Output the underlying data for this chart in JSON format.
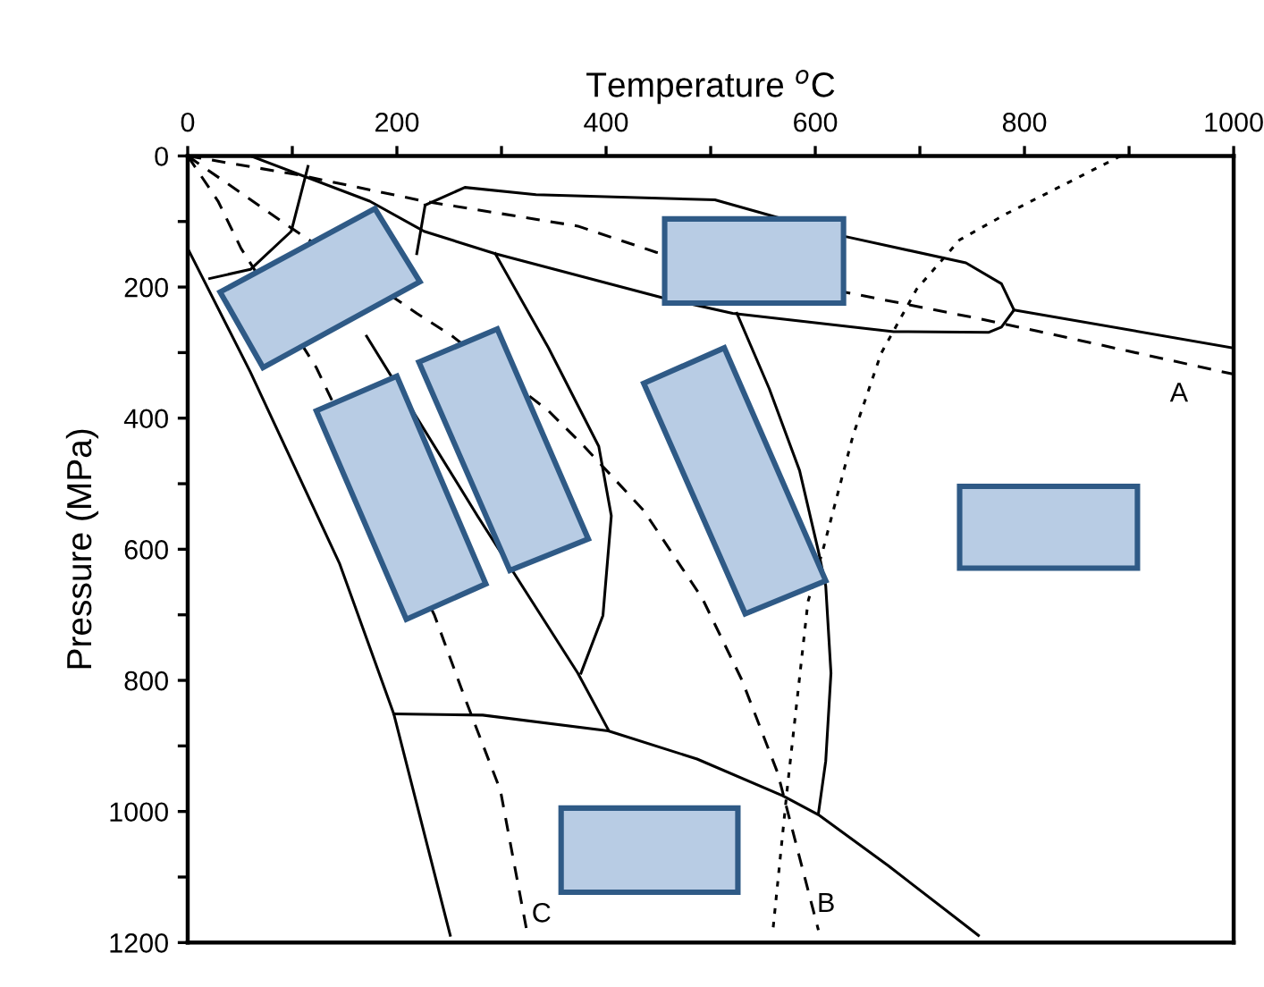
{
  "chart_data": {
    "type": "line",
    "xlabel": "Temperature $^{o}$C",
    "ylabel": "Pressure (MPa)",
    "xlim": [
      0,
      1000
    ],
    "ylim": [
      1200,
      0
    ],
    "xticks": [
      0,
      {
        "value": 100,
        "label": null
      },
      200,
      {
        "value": 300,
        "label": null
      },
      400,
      {
        "value": 500,
        "label": null
      },
      600,
      {
        "value": 700,
        "label": null
      },
      800,
      {
        "value": 900,
        "label": null
      },
      1000
    ],
    "yticks": [
      0,
      {
        "value": 100,
        "label": null
      },
      200,
      {
        "value": 300,
        "label": null
      },
      400,
      {
        "value": 500,
        "label": null
      },
      600,
      {
        "value": 700,
        "label": null
      },
      800,
      {
        "value": 900,
        "label": null
      },
      1000,
      {
        "value": 1100,
        "label": null
      },
      1200
    ],
    "grid": false,
    "legend": false,
    "marker": "none",
    "series": [
      {
        "color": "#000000",
        "line_style": "solid",
        "x": [
          60,
          174,
          226,
          294,
          453,
          521,
          675,
          766,
          778,
          790,
          1000
        ],
        "values": [
          0,
          69,
          115,
          149,
          216,
          240,
          268,
          269,
          261,
          235,
          293
        ]
      },
      {
        "color": "#000000",
        "line_style": "solid",
        "x": [
          227,
          265,
          333,
          504,
          629,
          744,
          778,
          790
        ],
        "values": [
          75,
          48,
          59,
          67,
          123,
          163,
          195,
          235
        ]
      },
      {
        "color": "#000000",
        "line_style": "solid",
        "x": [
          115,
          99,
          60,
          21
        ],
        "values": [
          16,
          115,
          173,
          187
        ]
      },
      {
        "color": "#000000",
        "line_style": "solid",
        "x": [
          227,
          219
        ],
        "values": [
          75,
          149
        ]
      },
      {
        "color": "#000000",
        "line_style": "solid",
        "x": [
          0,
          60,
          145,
          197,
          251
        ],
        "values": [
          141,
          330,
          621,
          851,
          1189
        ]
      },
      {
        "color": "#000000",
        "line_style": "solid",
        "x": [
          171,
          277,
          373,
          402
        ],
        "values": [
          275,
          549,
          789,
          875
        ]
      },
      {
        "color": "#000000",
        "line_style": "solid",
        "x": [
          294,
          345,
          393,
          405,
          397,
          376
        ],
        "values": [
          149,
          293,
          443,
          549,
          701,
          789
        ]
      },
      {
        "color": "#000000",
        "line_style": "solid",
        "x": [
          525,
          556,
          585,
          603,
          610,
          615,
          610,
          603
        ],
        "values": [
          240,
          355,
          480,
          603,
          656,
          789,
          923,
          1003
        ]
      },
      {
        "color": "#000000",
        "line_style": "solid",
        "x": [
          197,
          282,
          402,
          487,
          569,
          603,
          670,
          756
        ],
        "values": [
          851,
          853,
          877,
          920,
          976,
          1005,
          1083,
          1189
        ]
      },
      {
        "name": "A",
        "color": "#000000",
        "line_style": "dashed",
        "x": [
          0,
          106,
          226,
          373,
          448,
          629,
          756,
          812,
          1000
        ],
        "values": [
          0,
          29,
          69,
          107,
          147,
          208,
          248,
          267,
          333
        ]
      },
      {
        "name": "C",
        "color": "#000000",
        "line_style": "dashed",
        "x": [
          0,
          29,
          51,
          123,
          236,
          265,
          299,
          325
        ],
        "values": [
          0,
          69,
          141,
          323,
          701,
          827,
          968,
          1189
        ]
      },
      {
        "name": "B",
        "color": "#000000",
        "line_style": "dashed",
        "x": [
          0,
          90,
          219,
          253,
          345,
          379,
          436,
          492,
          530,
          564,
          603
        ],
        "values": [
          0,
          100,
          240,
          275,
          389,
          443,
          541,
          675,
          800,
          941,
          1181
        ]
      },
      {
        "color": "#000000",
        "line_style": "dotted",
        "x": [
          892,
          783,
          738,
          697,
          663,
          636,
          607,
          593,
          573,
          559
        ],
        "values": [
          0,
          88,
          128,
          203,
          301,
          427,
          603,
          680,
          968,
          1189
        ]
      }
    ]
  }
}
